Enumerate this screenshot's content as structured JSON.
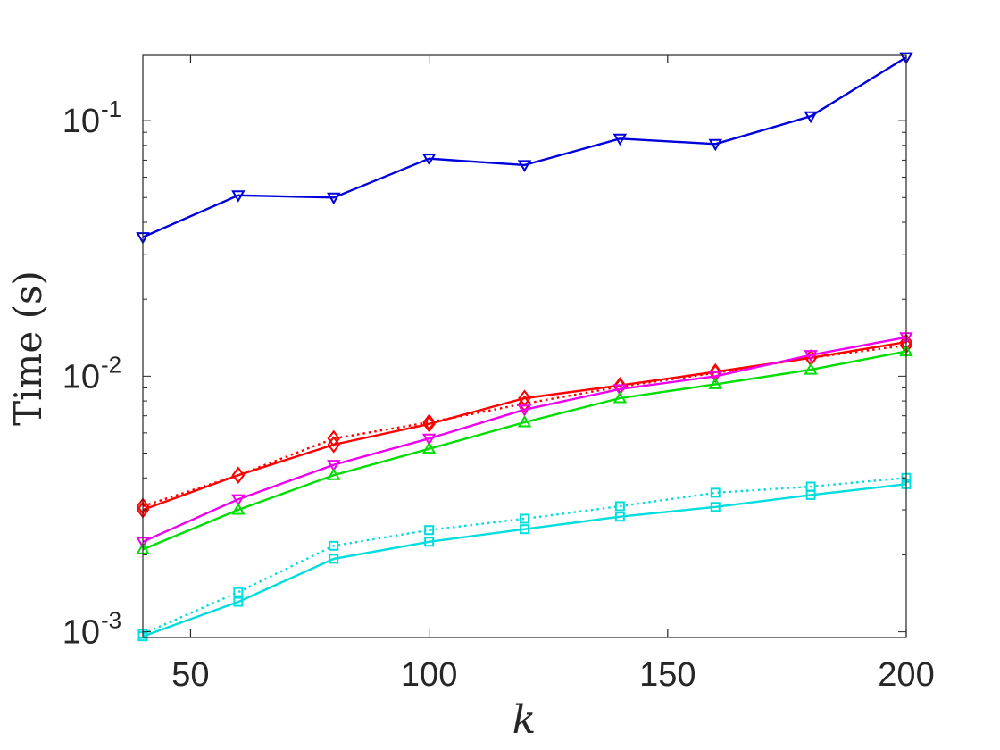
{
  "chart_data": {
    "type": "line",
    "title": "",
    "xlabel": "k",
    "ylabel": "Time (s)",
    "xlim": [
      40,
      200
    ],
    "ylim": [
      0.00095,
      0.18
    ],
    "yscale": "log",
    "grid": false,
    "legend": "none",
    "x": [
      40,
      60,
      80,
      100,
      120,
      140,
      160,
      180,
      200
    ],
    "x_ticks": [
      50,
      100,
      150,
      200
    ],
    "y_ticks": [
      {
        "base": "10",
        "exp": "-3",
        "value": 0.001
      },
      {
        "base": "10",
        "exp": "-2",
        "value": 0.01
      },
      {
        "base": "10",
        "exp": "-1",
        "value": 0.1
      }
    ],
    "series": [
      {
        "color": "#0000dd",
        "marker": "triangle-down",
        "dash": "solid",
        "values": [
          0.035,
          0.051,
          0.05,
          0.071,
          0.067,
          0.085,
          0.081,
          0.104,
          0.177
        ]
      },
      {
        "color": "#ff0000",
        "marker": "diamond",
        "dash": "dotted",
        "values": [
          0.0031,
          0.0041,
          0.0057,
          0.0066,
          0.0078,
          0.0091,
          0.0103,
          0.0118,
          0.0132
        ]
      },
      {
        "color": "#ff0000",
        "marker": "diamond",
        "dash": "solid",
        "values": [
          0.003,
          0.0041,
          0.0054,
          0.0065,
          0.0082,
          0.0092,
          0.0104,
          0.0118,
          0.0136
        ]
      },
      {
        "color": "#ee00ee",
        "marker": "triangle-down",
        "dash": "solid",
        "values": [
          0.00225,
          0.0033,
          0.0045,
          0.0057,
          0.0074,
          0.0089,
          0.01,
          0.0121,
          0.0142
        ]
      },
      {
        "color": "#00dd00",
        "marker": "triangle-up",
        "dash": "solid",
        "values": [
          0.0021,
          0.003,
          0.0041,
          0.0052,
          0.0066,
          0.0082,
          0.0093,
          0.0106,
          0.0125
        ]
      },
      {
        "color": "#00dddd",
        "marker": "square",
        "dash": "dotted",
        "values": [
          0.00098,
          0.00143,
          0.00217,
          0.0025,
          0.00277,
          0.0031,
          0.0035,
          0.0037,
          0.004
        ]
      },
      {
        "color": "#00dddd",
        "marker": "square",
        "dash": "solid",
        "values": [
          0.00096,
          0.00131,
          0.00193,
          0.00225,
          0.00252,
          0.00282,
          0.00308,
          0.00343,
          0.00378
        ]
      }
    ]
  }
}
